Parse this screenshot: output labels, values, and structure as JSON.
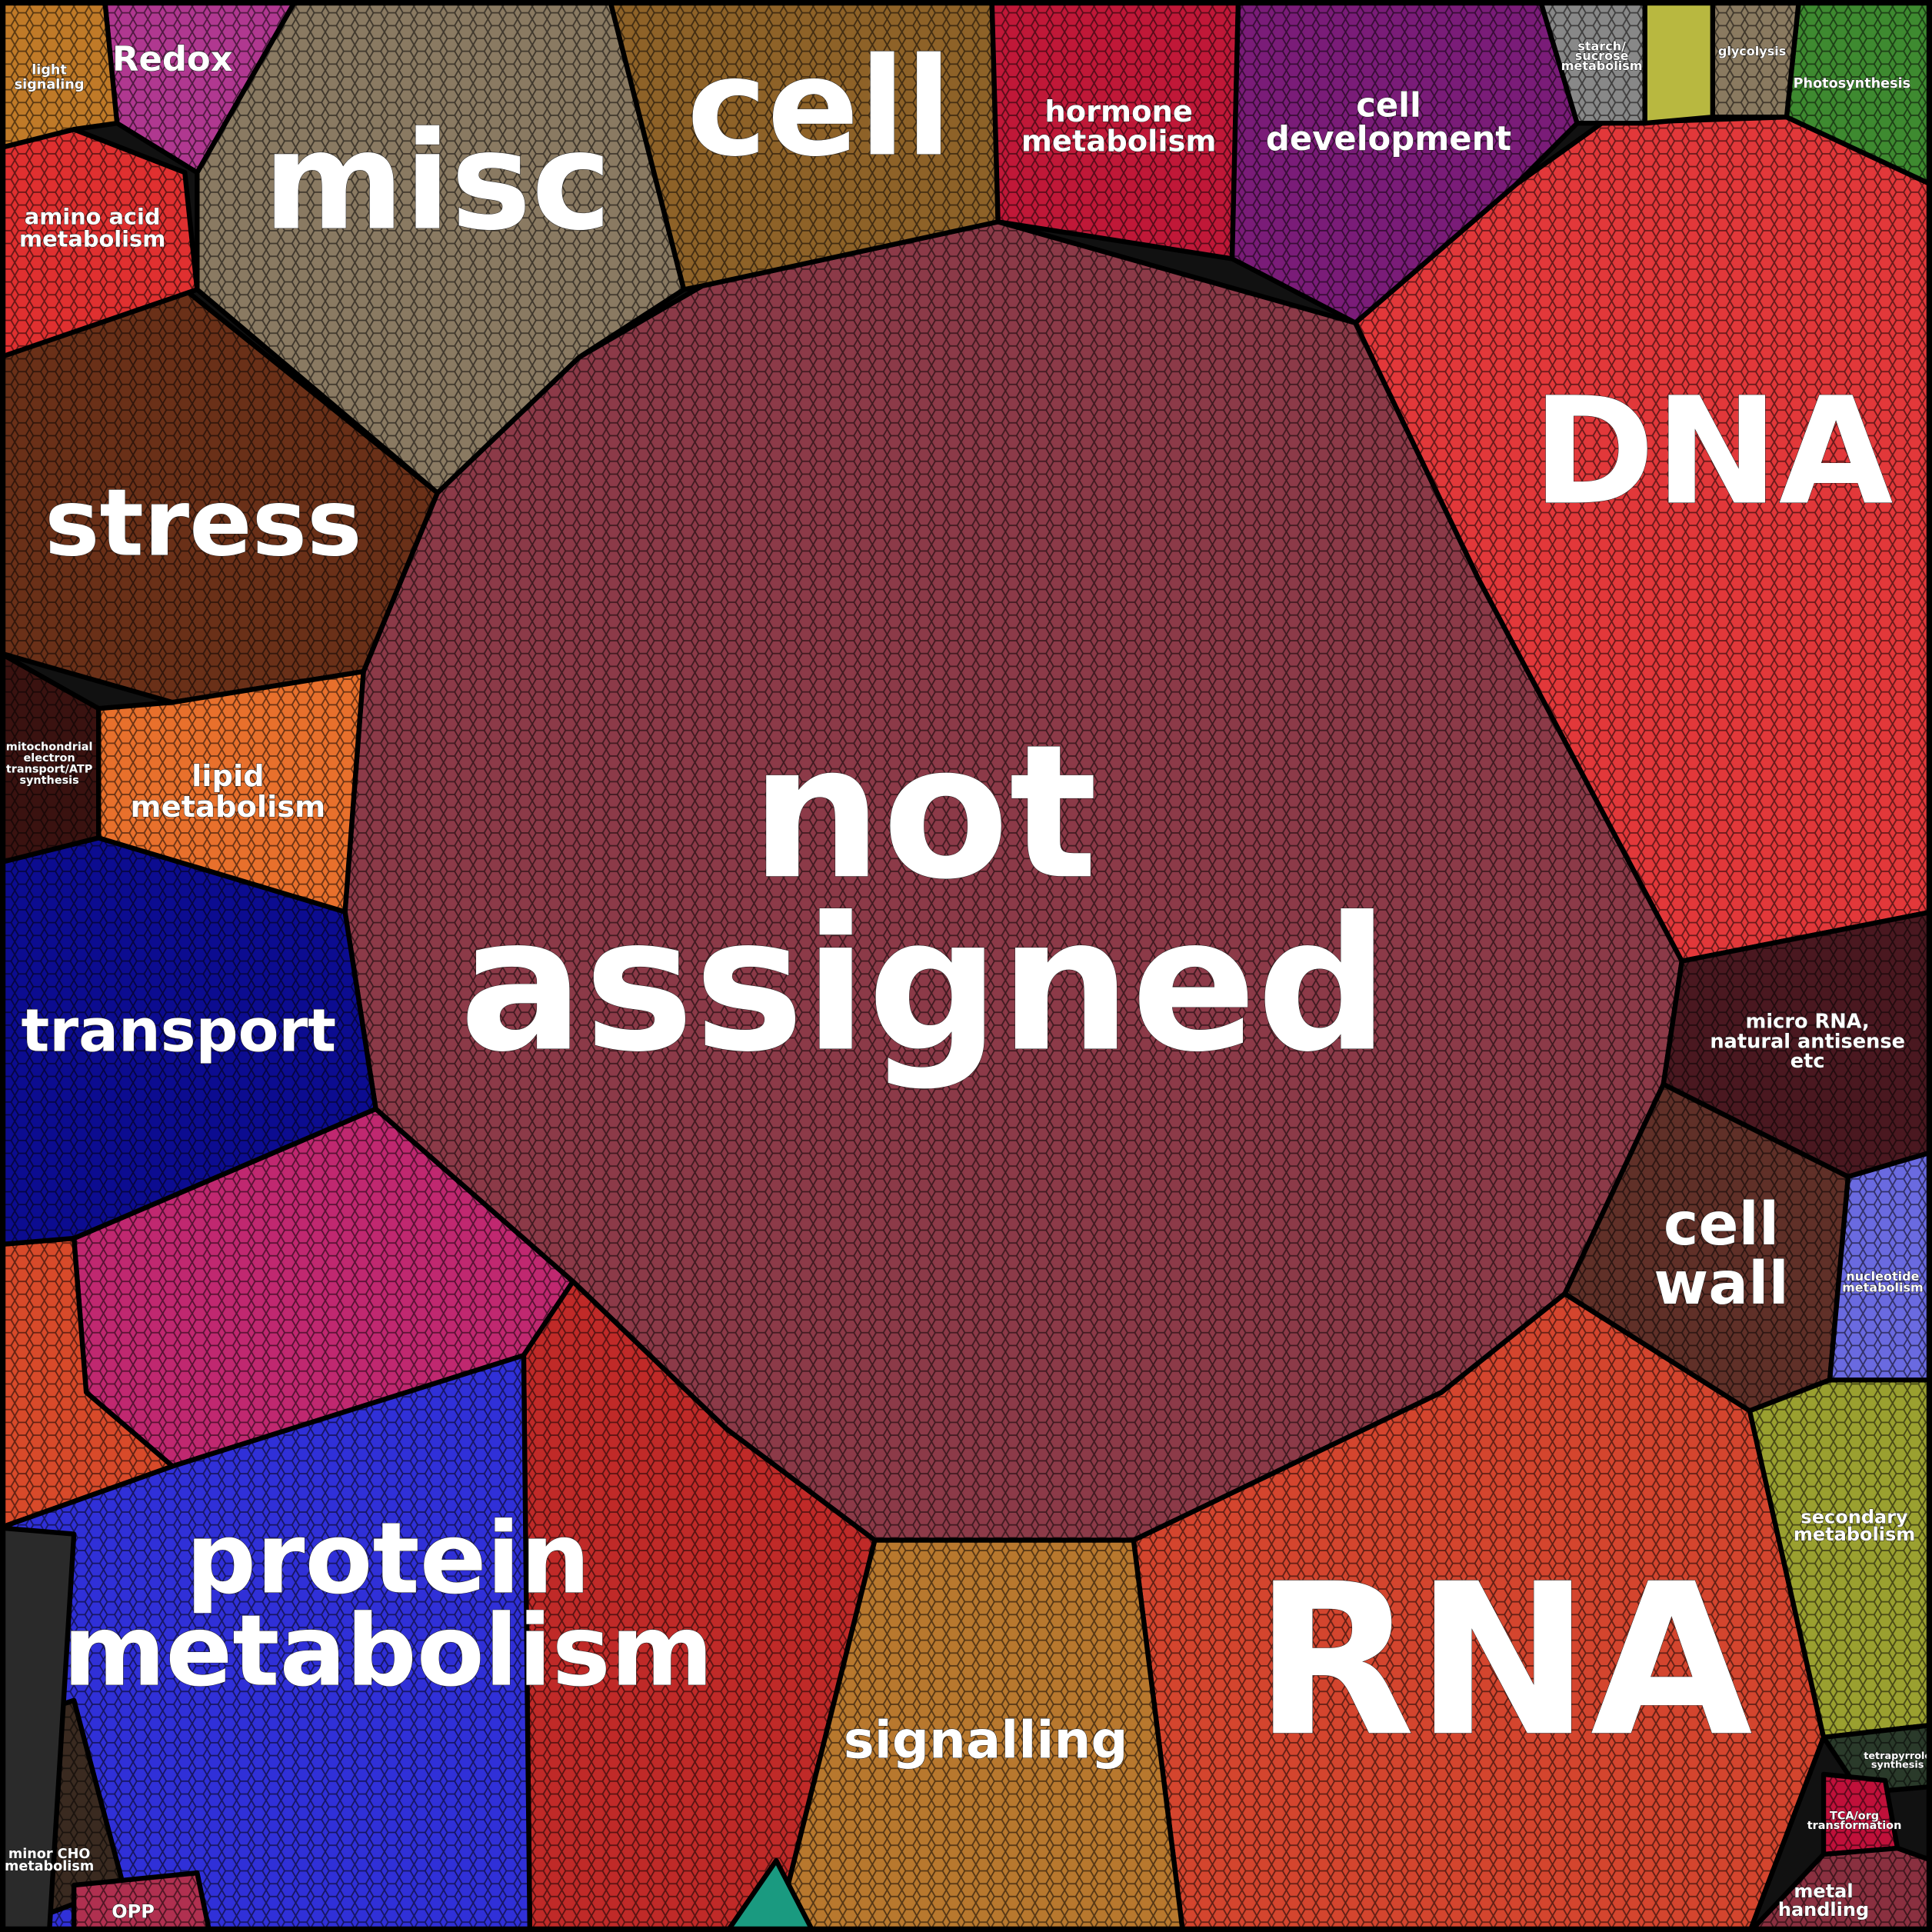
{
  "cells": [
    {
      "lines": [
        "not",
        "assigned"
      ]
    },
    {
      "lines": [
        "DNA"
      ]
    },
    {
      "lines": [
        "RNA"
      ]
    },
    {
      "lines": [
        "misc"
      ]
    },
    {
      "lines": [
        "cell"
      ]
    },
    {
      "lines": [
        "stress"
      ]
    },
    {
      "lines": [
        "protein",
        "metabolism"
      ]
    },
    {
      "lines": [
        "transport"
      ]
    },
    {
      "lines": [
        "signalling"
      ]
    },
    {
      "lines": [
        "cell",
        "wall"
      ]
    },
    {
      "lines": [
        "hormone",
        "metabolism"
      ]
    },
    {
      "lines": [
        "cell",
        "development"
      ]
    },
    {
      "lines": [
        "amino acid",
        "metabolism"
      ]
    },
    {
      "lines": [
        "lipid",
        "metabolism"
      ]
    },
    {
      "lines": [
        "Redox"
      ]
    },
    {
      "lines": [
        "light",
        "signaling"
      ]
    },
    {
      "lines": [
        "micro RNA,",
        "natural antisense",
        "etc"
      ]
    },
    {
      "lines": [
        "mitochondrial",
        "electron",
        "transport/ATP",
        "synthesis"
      ]
    },
    {
      "lines": [
        "secondary",
        "metabolism"
      ]
    },
    {
      "lines": [
        "nucleotide",
        "metabolism"
      ]
    },
    {
      "lines": [
        "Photosynthesis"
      ]
    },
    {
      "lines": [
        "glycolysis"
      ]
    },
    {
      "lines": [
        "starch/",
        "sucrose",
        "metabolism"
      ]
    },
    {
      "lines": [
        "minor CHO",
        "metabolism"
      ]
    },
    {
      "lines": [
        "OPP"
      ]
    },
    {
      "lines": [
        "tetrapyrrole",
        "synthesis"
      ]
    },
    {
      "lines": [
        "TCA/org",
        "transformation"
      ]
    },
    {
      "lines": [
        "metal",
        "handling"
      ]
    }
  ]
}
